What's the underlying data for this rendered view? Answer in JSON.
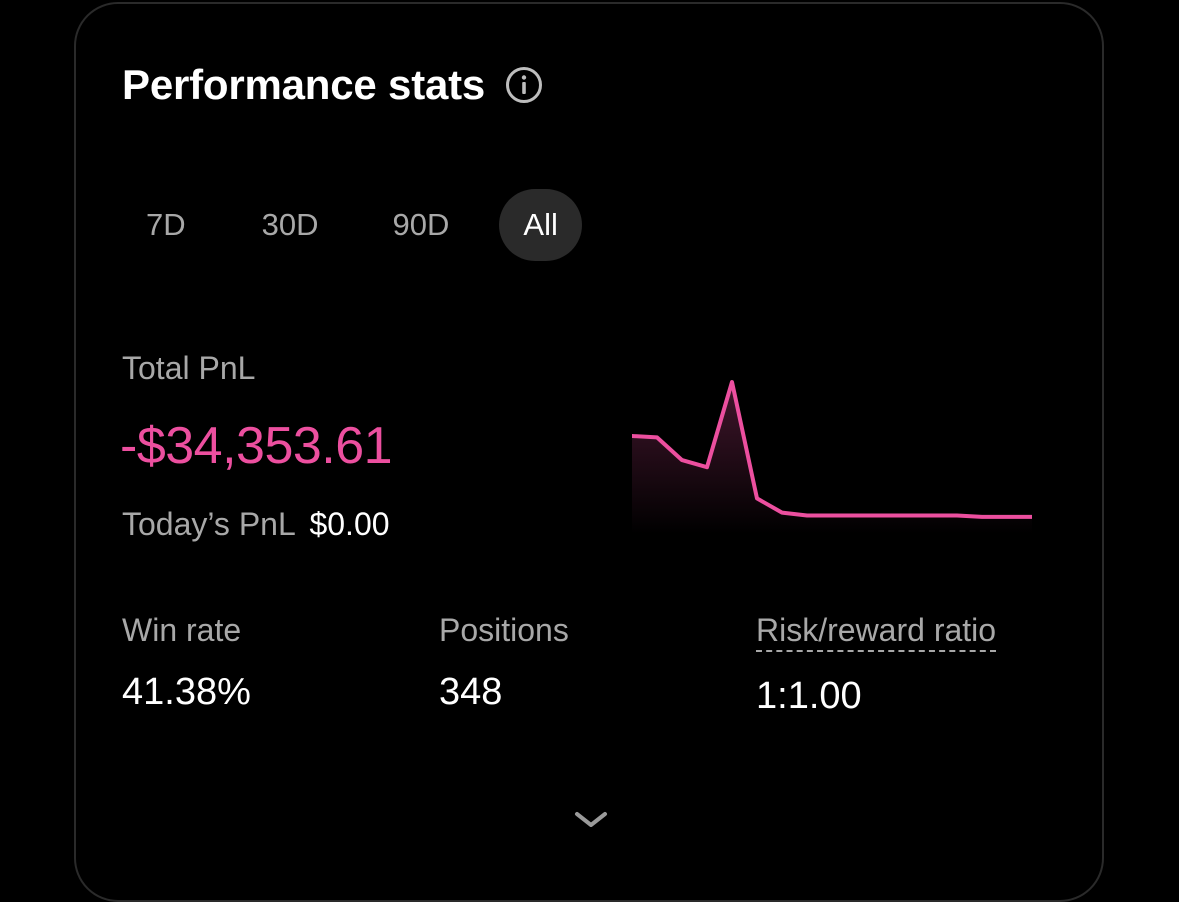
{
  "header": {
    "title": "Performance stats",
    "info_icon": "info-circle-icon"
  },
  "tabs": [
    {
      "label": "7D",
      "active": false
    },
    {
      "label": "30D",
      "active": false
    },
    {
      "label": "90D",
      "active": false
    },
    {
      "label": "All",
      "active": true
    }
  ],
  "pnl": {
    "total_label": "Total PnL",
    "total_value": "-$34,353.61",
    "today_label": "Today’s PnL",
    "today_value": "$0.00"
  },
  "stats": {
    "win_rate_label": "Win rate",
    "win_rate_value": "41.38%",
    "positions_label": "Positions",
    "positions_value": "348",
    "risk_label": "Risk/reward ratio",
    "risk_value": "1:1.00"
  },
  "expand_icon": "chevron-down-icon",
  "colors": {
    "background": "#000000",
    "accent_negative": "#ec4f9f",
    "muted_text": "#a8a8a8",
    "active_tab_bg": "#2a2a2a"
  },
  "chart_data": {
    "type": "area",
    "series": [
      {
        "values": [
          0.62,
          0.61,
          0.45,
          0.4,
          1.0,
          0.18,
          0.08,
          0.06,
          0.06,
          0.06,
          0.06,
          0.06,
          0.06,
          0.06,
          0.05,
          0.05,
          0.05
        ]
      }
    ],
    "line_color": "#ec4f9f",
    "axes_visible": false
  }
}
